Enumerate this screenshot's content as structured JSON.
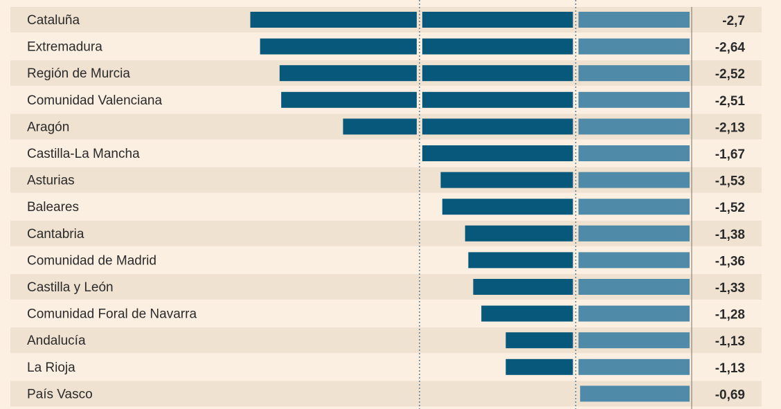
{
  "chart_data": {
    "type": "bar",
    "orientation": "horizontal",
    "categories": [
      "Cataluña",
      "Extremadura",
      "Región de Murcia",
      "Comunidad Valenciana",
      "Aragón",
      "Castilla-La Mancha",
      "Asturias",
      "Baleares",
      "Cantabria",
      "Comunidad de Madrid",
      "Castilla y León",
      "Comunidad Foral de Navarra",
      "Andalucía",
      "La Rioja",
      "País Vasco"
    ],
    "values": [
      -2.7,
      -2.64,
      -2.52,
      -2.51,
      -2.13,
      -1.67,
      -1.53,
      -1.52,
      -1.38,
      -1.36,
      -1.33,
      -1.28,
      -1.13,
      -1.13,
      -0.69
    ],
    "value_labels": [
      "-2,7",
      "-2,64",
      "-2,52",
      "-2,51",
      "-2,13",
      "-1,67",
      "-1,53",
      "-1,52",
      "-1,38",
      "-1,36",
      "-1,33",
      "-1,28",
      "-1,13",
      "-1,13",
      "-0,69"
    ],
    "reference_lines": [
      -0.7,
      -1.66
    ],
    "xlim": [
      -3.3,
      0
    ],
    "grid": false,
    "colors": {
      "dark_bar": "#08587c",
      "light_bar": "#4f8ba8",
      "row_alt": "#efe2d1",
      "row": "#fbefe2",
      "background": "#fcf0e3",
      "text": "#2a2a2a"
    }
  }
}
